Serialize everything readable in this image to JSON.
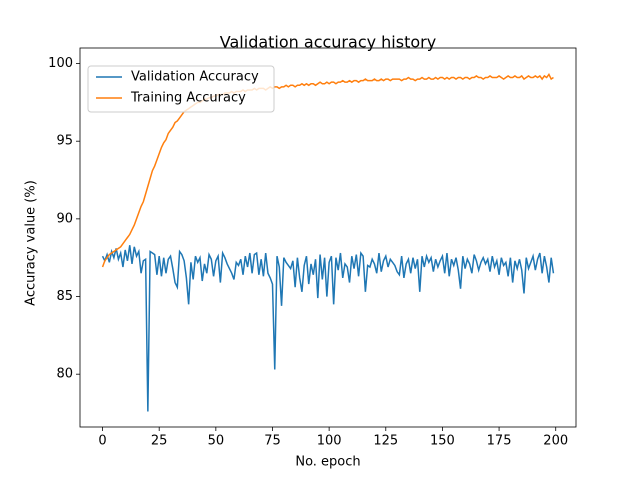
{
  "chart_data": {
    "type": "line",
    "title": "Validation accuracy history",
    "x_label": "No. epoch",
    "y_label": "Accuracy value (%)",
    "x": [
      0,
      1,
      2,
      3,
      4,
      5,
      6,
      7,
      8,
      9,
      10,
      11,
      12,
      13,
      14,
      15,
      16,
      17,
      18,
      19,
      20,
      21,
      22,
      23,
      24,
      25,
      26,
      27,
      28,
      29,
      30,
      31,
      32,
      33,
      34,
      35,
      36,
      37,
      38,
      39,
      40,
      41,
      42,
      43,
      44,
      45,
      46,
      47,
      48,
      49,
      50,
      51,
      52,
      53,
      54,
      55,
      56,
      57,
      58,
      59,
      60,
      61,
      62,
      63,
      64,
      65,
      66,
      67,
      68,
      69,
      70,
      71,
      72,
      73,
      74,
      75,
      76,
      77,
      78,
      79,
      80,
      81,
      82,
      83,
      84,
      85,
      86,
      87,
      88,
      89,
      90,
      91,
      92,
      93,
      94,
      95,
      96,
      97,
      98,
      99,
      100,
      101,
      102,
      103,
      104,
      105,
      106,
      107,
      108,
      109,
      110,
      111,
      112,
      113,
      114,
      115,
      116,
      117,
      118,
      119,
      120,
      121,
      122,
      123,
      124,
      125,
      126,
      127,
      128,
      129,
      130,
      131,
      132,
      133,
      134,
      135,
      136,
      137,
      138,
      139,
      140,
      141,
      142,
      143,
      144,
      145,
      146,
      147,
      148,
      149,
      150,
      151,
      152,
      153,
      154,
      155,
      156,
      157,
      158,
      159,
      160,
      161,
      162,
      163,
      164,
      165,
      166,
      167,
      168,
      169,
      170,
      171,
      172,
      173,
      174,
      175,
      176,
      177,
      178,
      179,
      180,
      181,
      182,
      183,
      184,
      185,
      186,
      187,
      188,
      189,
      190,
      191,
      192,
      193,
      194,
      195,
      196,
      197,
      198,
      199
    ],
    "series": [
      {
        "name": "Validation Accuracy",
        "color": "#1f77b4",
        "values": [
          87.6,
          87.3,
          87.7,
          87.2,
          87.9,
          87.5,
          88.1,
          87.4,
          87.8,
          86.9,
          88.0,
          87.3,
          88.3,
          87.1,
          88.2,
          87.6,
          87.9,
          86.5,
          87.3,
          87.4,
          77.6,
          87.9,
          87.8,
          87.7,
          86.4,
          87.6,
          86.3,
          87.5,
          86.5,
          87.4,
          87.6,
          86.8,
          85.9,
          85.6,
          87.9,
          87.7,
          87.3,
          86.2,
          84.5,
          87.2,
          86.1,
          87.6,
          87.2,
          87.5,
          86.0,
          87.1,
          86.5,
          87.7,
          87.4,
          86.3,
          87.3,
          87.6,
          85.9,
          87.8,
          87.5,
          87.1,
          86.8,
          86.5,
          86.1,
          87.2,
          87.0,
          87.4,
          86.4,
          87.6,
          86.9,
          87.8,
          86.5,
          87.7,
          87.8,
          86.4,
          87.4,
          86.3,
          87.8,
          86.5,
          86.2,
          85.8,
          80.3,
          87.6,
          86.9,
          84.4,
          87.5,
          87.2,
          87.0,
          86.8,
          87.3,
          85.6,
          87.5,
          86.2,
          85.3,
          87.0,
          87.6,
          85.8,
          87.1,
          86.4,
          87.4,
          84.9,
          87.7,
          86.1,
          87.5,
          85.0,
          87.2,
          87.6,
          84.5,
          87.5,
          86.7,
          87.8,
          86.2,
          87.1,
          86.9,
          85.9,
          87.6,
          86.8,
          87.7,
          86.3,
          87.8,
          87.6,
          85.3,
          87.0,
          86.9,
          87.4,
          87.1,
          86.5,
          87.8,
          86.6,
          87.3,
          87.6,
          86.9,
          87.4,
          87.2,
          87.0,
          86.6,
          86.4,
          87.6,
          86.2,
          87.1,
          87.4,
          86.5,
          87.5,
          86.8,
          87.4,
          85.3,
          87.6,
          86.9,
          87.6,
          87.2,
          87.5,
          86.6,
          87.4,
          86.9,
          87.3,
          87.6,
          86.5,
          87.8,
          86.3,
          87.4,
          87.0,
          87.5,
          86.7,
          85.5,
          87.6,
          86.8,
          87.4,
          87.1,
          86.5,
          87.7,
          87.3,
          86.7,
          87.2,
          87.5,
          87.1,
          87.4,
          86.6,
          87.6,
          86.9,
          87.3,
          86.4,
          87.5,
          87.0,
          87.2,
          86.3,
          87.5,
          85.9,
          87.3,
          86.8,
          87.4,
          86.7,
          85.2,
          87.5,
          86.8,
          87.2,
          87.6,
          86.7,
          87.4,
          87.8,
          86.5,
          87.6,
          86.9,
          85.9,
          87.5,
          86.5
        ]
      },
      {
        "name": "Training Accuracy",
        "color": "#ff7f0e",
        "values": [
          86.9,
          87.3,
          87.5,
          87.7,
          87.8,
          87.9,
          88.0,
          88.1,
          88.2,
          88.4,
          88.6,
          88.8,
          89.0,
          89.3,
          89.6,
          90.0,
          90.4,
          90.8,
          91.1,
          91.6,
          92.1,
          92.6,
          93.1,
          93.4,
          93.8,
          94.2,
          94.6,
          94.9,
          95.1,
          95.5,
          95.7,
          95.9,
          96.2,
          96.3,
          96.5,
          96.7,
          96.9,
          97.0,
          97.1,
          97.2,
          97.3,
          97.4,
          97.5,
          97.5,
          97.6,
          97.7,
          97.7,
          97.8,
          97.8,
          97.9,
          97.9,
          98.0,
          98.0,
          98.0,
          98.1,
          98.1,
          98.1,
          98.2,
          98.1,
          98.2,
          98.2,
          98.2,
          98.3,
          98.2,
          98.3,
          98.3,
          98.3,
          98.4,
          98.3,
          98.4,
          98.4,
          98.4,
          98.3,
          98.4,
          98.5,
          98.4,
          98.5,
          98.5,
          98.4,
          98.5,
          98.5,
          98.6,
          98.5,
          98.6,
          98.6,
          98.5,
          98.6,
          98.6,
          98.7,
          98.6,
          98.7,
          98.6,
          98.7,
          98.7,
          98.6,
          98.7,
          98.8,
          98.7,
          98.7,
          98.8,
          98.7,
          98.8,
          98.8,
          98.7,
          98.8,
          98.8,
          98.9,
          98.8,
          98.8,
          98.9,
          98.8,
          98.9,
          98.9,
          98.8,
          98.9,
          98.9,
          99.0,
          98.9,
          98.9,
          98.9,
          99.0,
          98.9,
          98.9,
          99.0,
          98.9,
          99.0,
          99.0,
          98.9,
          99.0,
          99.0,
          99.0,
          99.0,
          98.9,
          99.0,
          99.0,
          99.1,
          99.0,
          99.0,
          98.9,
          99.0,
          99.0,
          99.1,
          99.0,
          99.0,
          99.1,
          99.0,
          99.0,
          99.1,
          99.0,
          99.1,
          99.1,
          99.0,
          99.1,
          99.0,
          99.1,
          99.1,
          99.0,
          99.1,
          99.1,
          99.0,
          99.1,
          99.1,
          99.0,
          99.1,
          99.1,
          99.2,
          99.1,
          99.1,
          99.0,
          99.1,
          99.1,
          99.2,
          99.1,
          99.1,
          99.1,
          99.2,
          99.1,
          99.0,
          99.1,
          99.2,
          99.1,
          99.1,
          99.2,
          99.1,
          99.1,
          99.2,
          99.0,
          99.1,
          99.2,
          99.1,
          99.1,
          99.2,
          99.1,
          99.2,
          99.0,
          99.2,
          99.1,
          99.3,
          99.0,
          99.1
        ]
      }
    ],
    "xlim": [
      -9.95,
      208.95
    ],
    "ylim": [
      76.6,
      101.0
    ],
    "xticks": [
      0,
      25,
      50,
      75,
      100,
      125,
      150,
      175,
      200
    ],
    "yticks": [
      80,
      85,
      90,
      95,
      100
    ],
    "legend": "upper left"
  }
}
